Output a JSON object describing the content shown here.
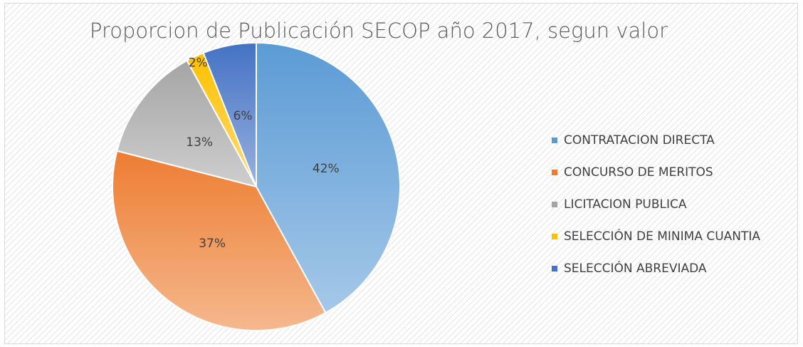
{
  "chart_data": {
    "type": "pie",
    "title": "Proporcion de Publicación SECOP año 2017, segun valor",
    "categories": [
      "CONTRATACION DIRECTA",
      "CONCURSO DE MERITOS",
      "LICITACION PUBLICA",
      "SELECCIÓN DE MINIMA CUANTIA",
      "SELECCIÓN ABREVIADA"
    ],
    "values": [
      42,
      37,
      13,
      2,
      6
    ],
    "value_labels": [
      "42%",
      "37%",
      "13%",
      "2%",
      "6%"
    ],
    "colors": [
      "#5b9bd5",
      "#ed7d31",
      "#a5a5a5",
      "#ffc000",
      "#4472c4"
    ],
    "legend": "right"
  }
}
